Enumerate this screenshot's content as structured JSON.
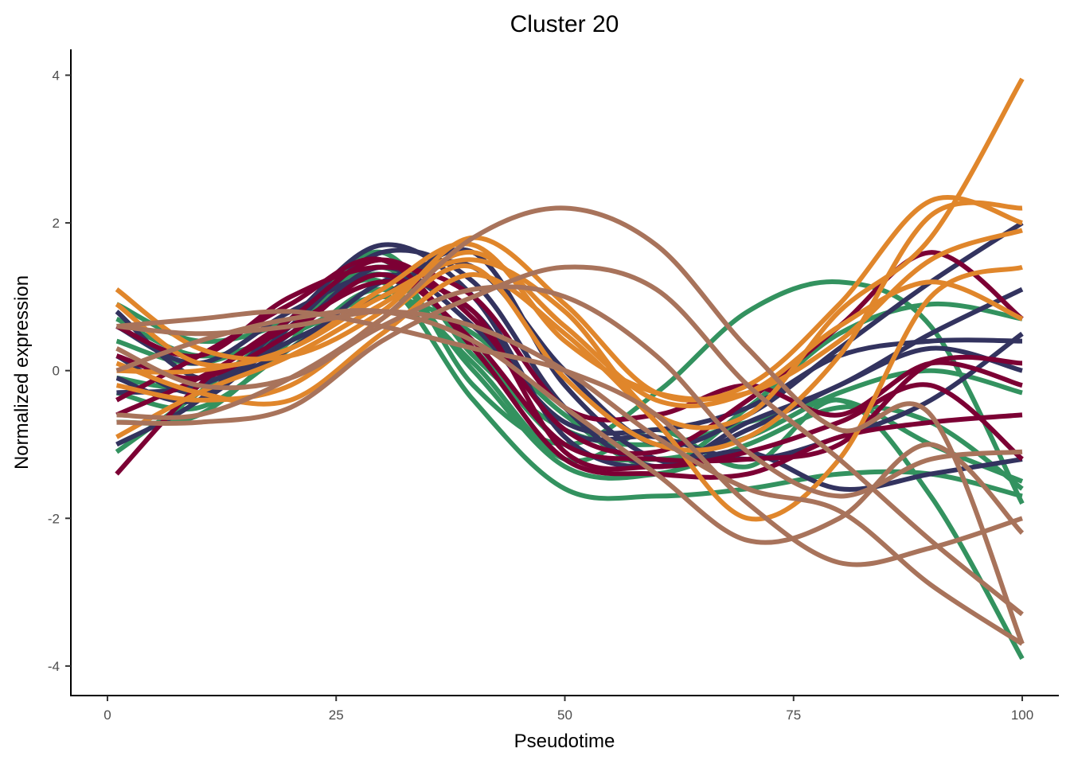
{
  "chart_data": {
    "type": "line",
    "title": "Cluster 20",
    "xlabel": "Pseudotime",
    "ylabel": "Normalized expression",
    "xlim": [
      -4,
      104
    ],
    "ylim": [
      -4.4,
      4.35
    ],
    "xticks": [
      0,
      25,
      50,
      75,
      100
    ],
    "yticks": [
      -4,
      -2,
      0,
      2,
      4
    ],
    "xtick_labels": [
      "0",
      "25",
      "50",
      "75",
      "100"
    ],
    "ytick_labels": [
      "-4",
      "-2",
      "0",
      "2",
      "4"
    ],
    "grid": false,
    "legend": "none",
    "x": [
      1,
      10,
      20,
      30,
      40,
      50,
      60,
      70,
      80,
      90,
      100
    ],
    "colors": {
      "green": "#33925f",
      "navy": "#33335f",
      "crimson": "#7c0034",
      "orange": "#e0862b",
      "brown": "#a8735b"
    },
    "series": [
      {
        "color": "#33925f",
        "values": [
          0.9,
          0.4,
          0.7,
          1.6,
          0.2,
          -0.8,
          -1.0,
          -0.7,
          -0.4,
          -1.0,
          -1.5
        ]
      },
      {
        "color": "#33925f",
        "values": [
          0.4,
          0.1,
          0.6,
          1.4,
          0.3,
          -1.0,
          -1.2,
          -0.9,
          -0.3,
          0.0,
          -0.3
        ]
      },
      {
        "color": "#33925f",
        "values": [
          -0.1,
          -0.2,
          0.5,
          1.3,
          0.0,
          -1.3,
          -1.4,
          -1.0,
          -0.5,
          -0.7,
          -1.6
        ]
      },
      {
        "color": "#33925f",
        "values": [
          -0.7,
          -0.6,
          0.4,
          1.5,
          -0.2,
          -1.0,
          -0.3,
          0.8,
          1.2,
          0.6,
          -1.8
        ]
      },
      {
        "color": "#33925f",
        "values": [
          -1.1,
          -0.3,
          0.6,
          1.2,
          -0.4,
          -1.6,
          -1.7,
          -1.6,
          -1.4,
          -1.4,
          -1.7
        ]
      },
      {
        "color": "#33925f",
        "values": [
          0.7,
          0.2,
          0.5,
          1.0,
          0.5,
          -0.6,
          -1.3,
          -0.5,
          0.5,
          0.9,
          0.7
        ]
      },
      {
        "color": "#33925f",
        "values": [
          -0.3,
          -0.5,
          0.3,
          1.1,
          0.1,
          -1.2,
          -0.8,
          -1.3,
          -0.4,
          -1.7,
          -3.9
        ]
      },
      {
        "color": "#33335f",
        "values": [
          0.8,
          -0.1,
          0.3,
          1.2,
          1.4,
          0.0,
          -1.0,
          -0.6,
          0.3,
          1.2,
          2.0
        ]
      },
      {
        "color": "#33335f",
        "values": [
          -0.1,
          -0.4,
          0.6,
          1.6,
          1.2,
          -0.5,
          -1.3,
          -0.7,
          -0.2,
          0.5,
          1.1
        ]
      },
      {
        "color": "#33335f",
        "values": [
          0.6,
          0.1,
          0.8,
          1.3,
          0.8,
          -0.8,
          -0.9,
          -1.2,
          -0.9,
          -0.4,
          0.5
        ]
      },
      {
        "color": "#33335f",
        "values": [
          -0.3,
          -0.2,
          0.4,
          1.0,
          1.6,
          -0.2,
          -1.2,
          -1.1,
          -1.6,
          -1.4,
          -1.2
        ]
      },
      {
        "color": "#33335f",
        "values": [
          -1.0,
          -0.4,
          0.7,
          1.7,
          1.0,
          -0.9,
          -1.3,
          -0.8,
          -0.2,
          0.3,
          0.0
        ]
      },
      {
        "color": "#33335f",
        "values": [
          0.2,
          -0.3,
          0.5,
          1.4,
          0.6,
          -0.7,
          -0.8,
          -0.5,
          0.2,
          0.4,
          0.4
        ]
      },
      {
        "color": "#7c0034",
        "values": [
          -1.4,
          -0.2,
          0.7,
          1.5,
          0.7,
          -0.8,
          -1.1,
          -0.4,
          0.6,
          1.6,
          0.7
        ]
      },
      {
        "color": "#7c0034",
        "values": [
          0.2,
          -0.1,
          0.5,
          1.3,
          0.4,
          -1.0,
          -1.2,
          -1.2,
          -1.0,
          0.1,
          0.1
        ]
      },
      {
        "color": "#7c0034",
        "values": [
          -0.4,
          0.2,
          0.9,
          1.5,
          0.3,
          -1.2,
          -1.4,
          -1.4,
          -0.9,
          -0.7,
          -0.6
        ]
      },
      {
        "color": "#7c0034",
        "values": [
          0.6,
          0.2,
          1.0,
          1.4,
          1.0,
          -0.5,
          -0.6,
          -0.2,
          -0.6,
          0.1,
          -0.2
        ]
      },
      {
        "color": "#7c0034",
        "values": [
          -0.6,
          -0.1,
          0.6,
          1.2,
          0.8,
          -1.1,
          -1.3,
          -1.1,
          -0.7,
          -0.2,
          -1.2
        ]
      },
      {
        "color": "#e0862b",
        "values": [
          1.1,
          0.3,
          0.2,
          0.8,
          1.8,
          0.9,
          -0.3,
          -0.2,
          0.9,
          2.3,
          2.0
        ]
      },
      {
        "color": "#e0862b",
        "values": [
          0.0,
          0.0,
          0.3,
          1.0,
          1.5,
          0.8,
          -0.6,
          -0.6,
          0.8,
          1.8,
          3.95
        ]
      },
      {
        "color": "#e0862b",
        "values": [
          -0.9,
          -0.3,
          0.2,
          0.9,
          1.6,
          0.6,
          -0.4,
          -0.3,
          0.6,
          1.2,
          0.7
        ]
      },
      {
        "color": "#e0862b",
        "values": [
          0.1,
          -0.3,
          -0.4,
          0.5,
          1.3,
          0.5,
          -0.7,
          -2.0,
          -1.2,
          1.0,
          1.4
        ]
      },
      {
        "color": "#e0862b",
        "values": [
          -0.2,
          -0.4,
          -0.2,
          0.7,
          1.4,
          -0.1,
          -1.0,
          -0.9,
          0.2,
          2.1,
          2.2
        ]
      },
      {
        "color": "#e0862b",
        "values": [
          0.9,
          0.1,
          0.3,
          1.1,
          1.7,
          0.4,
          -0.3,
          -0.3,
          0.4,
          1.5,
          1.9
        ]
      },
      {
        "color": "#a8735b",
        "values": [
          -0.6,
          -0.6,
          -0.1,
          0.7,
          1.8,
          2.2,
          1.7,
          0.3,
          -0.8,
          -0.6,
          -3.7
        ]
      },
      {
        "color": "#a8735b",
        "values": [
          -0.7,
          -0.7,
          -0.5,
          0.4,
          1.0,
          1.4,
          1.1,
          -0.2,
          -1.2,
          -2.3,
          -3.3
        ]
      },
      {
        "color": "#a8735b",
        "values": [
          0.6,
          0.7,
          0.8,
          0.6,
          0.3,
          0.0,
          -0.6,
          -1.8,
          -2.6,
          -2.4,
          -2.0
        ]
      },
      {
        "color": "#a8735b",
        "values": [
          0.3,
          -0.2,
          -0.1,
          0.6,
          1.1,
          1.0,
          0.2,
          -1.1,
          -1.7,
          -1.2,
          -1.1
        ]
      },
      {
        "color": "#a8735b",
        "values": [
          0.0,
          0.4,
          0.7,
          0.8,
          0.4,
          -0.5,
          -1.4,
          -2.3,
          -2.0,
          -1.0,
          -2.2
        ]
      },
      {
        "color": "#a8735b",
        "values": [
          0.6,
          0.5,
          0.6,
          0.8,
          0.6,
          0.0,
          -0.9,
          -1.6,
          -1.9,
          -2.9,
          -3.7
        ]
      }
    ]
  }
}
